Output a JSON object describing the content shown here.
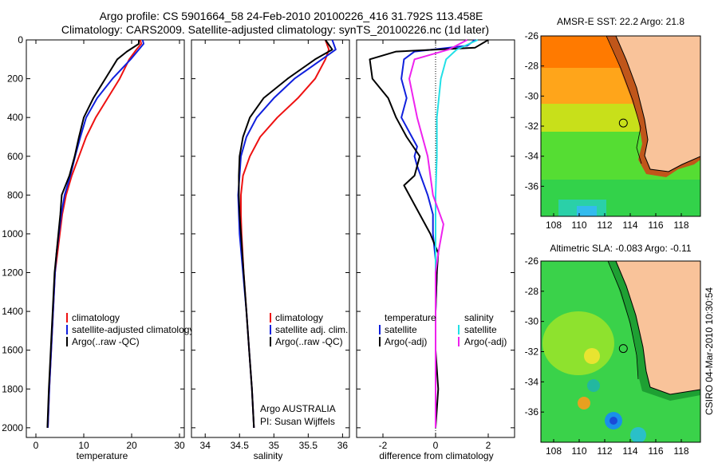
{
  "header": {
    "line1": "Argo profile: CS 5901664_58 24-Feb-2010 20100226_416 31.792S 113.458E",
    "line2": "Climatology: CARS2009. Satellite-adjusted climatology: synTS_20100226.nc (1d later)"
  },
  "footer": {
    "credit": "CSIRO 04-Mar-2010 10:30:54"
  },
  "colors": {
    "climatology": "#ee1111",
    "satellite": "#1020dd",
    "argo": "#000000",
    "satellite_diff": "#22e0e6",
    "argo_adj_diff": "#ee22ee",
    "land": "#f9c39a"
  },
  "chart_data": [
    {
      "id": "temperature",
      "type": "line",
      "xlabel": "temperature",
      "ylabel": "",
      "xlim": [
        -2,
        31
      ],
      "ylim": [
        2050,
        0
      ],
      "xticks": [
        0,
        10,
        20,
        30
      ],
      "yticks": [
        0,
        200,
        400,
        600,
        800,
        1000,
        1200,
        1400,
        1600,
        1800,
        2000
      ],
      "legend": {
        "placement": "bottom-right",
        "entries": [
          "climatology",
          "satellite-adjusted climatology",
          "Argo(..raw -QC)"
        ]
      },
      "series": [
        {
          "name": "climatology",
          "color": "#ee1111",
          "points": [
            [
              21.8,
              0
            ],
            [
              22,
              20
            ],
            [
              21,
              50
            ],
            [
              19.5,
              100
            ],
            [
              17.5,
              200
            ],
            [
              15,
              300
            ],
            [
              12.5,
              400
            ],
            [
              10.5,
              500
            ],
            [
              9,
              600
            ],
            [
              7.5,
              700
            ],
            [
              6.3,
              800
            ],
            [
              5.5,
              900
            ],
            [
              5,
              1000
            ],
            [
              4.5,
              1100
            ],
            [
              4,
              1200
            ],
            [
              3.6,
              1400
            ],
            [
              3.2,
              1600
            ],
            [
              2.8,
              1800
            ],
            [
              2.5,
              2000
            ]
          ]
        },
        {
          "name": "satellite-adjusted climatology",
          "color": "#1020dd",
          "points": [
            [
              22.3,
              0
            ],
            [
              22.5,
              20
            ],
            [
              21.5,
              50
            ],
            [
              19.8,
              100
            ],
            [
              16,
              200
            ],
            [
              12.8,
              300
            ],
            [
              10.5,
              400
            ],
            [
              9.3,
              500
            ],
            [
              8.2,
              600
            ],
            [
              7.2,
              700
            ],
            [
              6,
              800
            ],
            [
              5.3,
              900
            ],
            [
              4.8,
              1000
            ],
            [
              4.3,
              1100
            ],
            [
              4,
              1200
            ],
            [
              3.6,
              1400
            ],
            [
              3.2,
              1600
            ],
            [
              2.8,
              1800
            ],
            [
              2.5,
              2000
            ]
          ]
        },
        {
          "name": "Argo(..raw -QC)",
          "color": "#000000",
          "points": [
            [
              21.5,
              0
            ],
            [
              21.5,
              20
            ],
            [
              19,
              60
            ],
            [
              17,
              100
            ],
            [
              14.5,
              200
            ],
            [
              12,
              300
            ],
            [
              10,
              400
            ],
            [
              9,
              500
            ],
            [
              8.1,
              600
            ],
            [
              7,
              700
            ],
            [
              5.4,
              800
            ],
            [
              5.1,
              900
            ],
            [
              4.7,
              1000
            ],
            [
              4.3,
              1100
            ],
            [
              3.9,
              1200
            ],
            [
              3.5,
              1400
            ],
            [
              3.1,
              1600
            ],
            [
              2.7,
              1800
            ],
            [
              2.4,
              2000
            ]
          ]
        }
      ]
    },
    {
      "id": "salinity",
      "type": "line",
      "xlabel": "salinity",
      "xlim": [
        33.8,
        36.1
      ],
      "ylim": [
        2050,
        0
      ],
      "xticks": [
        34,
        34.5,
        35,
        35.5,
        36
      ],
      "legend": {
        "placement": "bottom-right",
        "entries": [
          "climatology",
          "satellite adj. clim.",
          "Argo(..raw -QC)"
        ]
      },
      "annotation": [
        "Argo AUSTRALIA",
        "PI: Susan Wijffels"
      ],
      "series": [
        {
          "name": "climatology",
          "color": "#ee1111",
          "points": [
            [
              35.75,
              0
            ],
            [
              35.8,
              50
            ],
            [
              35.75,
              100
            ],
            [
              35.6,
              200
            ],
            [
              35.35,
              300
            ],
            [
              35.05,
              400
            ],
            [
              34.8,
              500
            ],
            [
              34.65,
              600
            ],
            [
              34.55,
              700
            ],
            [
              34.52,
              800
            ],
            [
              34.52,
              900
            ],
            [
              34.53,
              1000
            ],
            [
              34.56,
              1200
            ],
            [
              34.6,
              1400
            ],
            [
              34.64,
              1600
            ],
            [
              34.68,
              1800
            ],
            [
              34.71,
              2000
            ]
          ]
        },
        {
          "name": "satellite adj. clim.",
          "color": "#1020dd",
          "points": [
            [
              35.85,
              0
            ],
            [
              35.9,
              50
            ],
            [
              35.7,
              100
            ],
            [
              35.3,
              200
            ],
            [
              35.0,
              300
            ],
            [
              34.75,
              400
            ],
            [
              34.6,
              500
            ],
            [
              34.52,
              600
            ],
            [
              34.5,
              700
            ],
            [
              34.48,
              800
            ],
            [
              34.49,
              900
            ],
            [
              34.5,
              1000
            ],
            [
              34.55,
              1200
            ],
            [
              34.6,
              1400
            ],
            [
              34.64,
              1600
            ],
            [
              34.68,
              1800
            ],
            [
              34.71,
              2000
            ]
          ]
        },
        {
          "name": "Argo(..raw -QC)",
          "color": "#000000",
          "points": [
            [
              35.75,
              0
            ],
            [
              35.85,
              50
            ],
            [
              35.6,
              100
            ],
            [
              35.2,
              200
            ],
            [
              34.85,
              300
            ],
            [
              34.65,
              400
            ],
            [
              34.55,
              500
            ],
            [
              34.5,
              600
            ],
            [
              34.49,
              700
            ],
            [
              34.49,
              800
            ],
            [
              34.5,
              900
            ],
            [
              34.52,
              1000
            ],
            [
              34.56,
              1200
            ],
            [
              34.6,
              1400
            ],
            [
              34.64,
              1600
            ],
            [
              34.68,
              1800
            ],
            [
              34.71,
              2000
            ]
          ]
        }
      ]
    },
    {
      "id": "difference",
      "type": "line",
      "xlabel": "difference from climatology",
      "xlim": [
        -3,
        3
      ],
      "ylim": [
        2050,
        0
      ],
      "xticks": [
        -2,
        0,
        2
      ],
      "zero_line": 0,
      "legend": {
        "placement": "bottom",
        "entries": [
          "temperature",
          "satellite",
          "Argo(-adj)",
          "salinity",
          "satellite",
          "Argo(-adj)"
        ]
      },
      "series": [
        {
          "name": "temperature satellite",
          "color": "#1020dd",
          "points": [
            [
              1.5,
              0
            ],
            [
              1.2,
              30
            ],
            [
              -0.8,
              60
            ],
            [
              -1.2,
              100
            ],
            [
              -1.3,
              200
            ],
            [
              -1.1,
              300
            ],
            [
              -1.3,
              400
            ],
            [
              -0.9,
              500
            ],
            [
              -0.7,
              550
            ],
            [
              -0.8,
              600
            ],
            [
              -0.7,
              650
            ],
            [
              -0.3,
              800
            ],
            [
              -0.1,
              900
            ],
            [
              -0.1,
              1000
            ],
            [
              0.05,
              1200
            ],
            [
              0,
              1400
            ],
            [
              0,
              1600
            ],
            [
              0,
              1800
            ],
            [
              0,
              2000
            ]
          ]
        },
        {
          "name": "temperature Argo(-adj)",
          "color": "#000000",
          "points": [
            [
              2,
              0
            ],
            [
              1.5,
              40
            ],
            [
              -1.5,
              60
            ],
            [
              -2.5,
              100
            ],
            [
              -2.4,
              200
            ],
            [
              -1.8,
              300
            ],
            [
              -1.5,
              400
            ],
            [
              -1.1,
              500
            ],
            [
              -0.6,
              600
            ],
            [
              -0.8,
              700
            ],
            [
              -1.2,
              750
            ],
            [
              -0.8,
              850
            ],
            [
              -0.2,
              1000
            ],
            [
              0.1,
              1100
            ],
            [
              0.05,
              1200
            ],
            [
              0,
              1400
            ],
            [
              0,
              1600
            ],
            [
              0.1,
              1800
            ],
            [
              0,
              2000
            ]
          ]
        },
        {
          "name": "salinity satellite",
          "color": "#22e0e6",
          "points": [
            [
              1.6,
              0
            ],
            [
              0.8,
              50
            ],
            [
              0.4,
              100
            ],
            [
              0.2,
              200
            ],
            [
              0.05,
              400
            ],
            [
              0.05,
              600
            ],
            [
              0,
              800
            ],
            [
              0,
              1000
            ],
            [
              0,
              1200
            ],
            [
              0,
              1400
            ],
            [
              0,
              1600
            ],
            [
              0,
              1800
            ],
            [
              0,
              2000
            ]
          ]
        },
        {
          "name": "salinity Argo(-adj)",
          "color": "#ee22ee",
          "points": [
            [
              1.2,
              0
            ],
            [
              0.5,
              50
            ],
            [
              -0.8,
              100
            ],
            [
              -1.0,
              200
            ],
            [
              -0.7,
              400
            ],
            [
              -0.5,
              500
            ],
            [
              -0.3,
              600
            ],
            [
              -0.1,
              800
            ],
            [
              0.3,
              950
            ],
            [
              0.1,
              1100
            ],
            [
              0,
              1200
            ],
            [
              0,
              1400
            ],
            [
              0,
              1600
            ],
            [
              0,
              1800
            ],
            [
              0,
              2000
            ]
          ]
        }
      ]
    },
    {
      "id": "sst_map",
      "type": "heatmap",
      "title": "AMSR-E SST: 22.2 Argo: 21.8",
      "xlim": [
        107,
        119.5
      ],
      "ylim": [
        -38,
        -26
      ],
      "xticks": [
        108,
        110,
        112,
        114,
        116,
        118
      ],
      "yticks": [
        -26,
        -28,
        -30,
        -32,
        -34,
        -36
      ],
      "marker": [
        113.458,
        -31.792
      ]
    },
    {
      "id": "sla_map",
      "type": "heatmap",
      "title": "Altimetric SLA: -0.083 Argo: -0.11",
      "xlim": [
        107,
        119.5
      ],
      "ylim": [
        -38,
        -26
      ],
      "xticks": [
        108,
        110,
        112,
        114,
        116,
        118
      ],
      "yticks": [
        -26,
        -28,
        -30,
        -32,
        -34,
        -36
      ],
      "marker": [
        113.458,
        -31.792
      ]
    }
  ]
}
